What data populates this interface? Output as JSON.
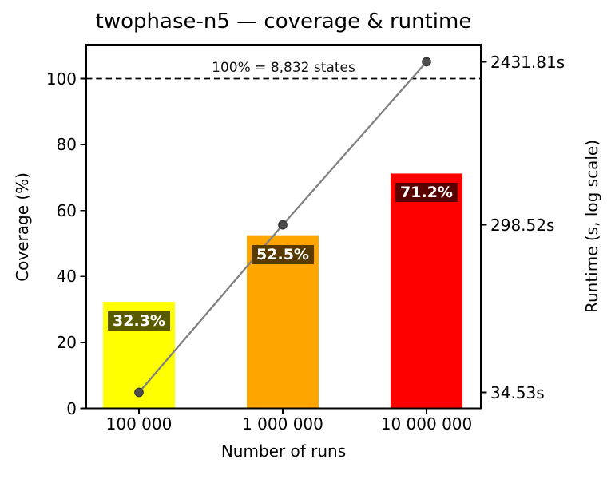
{
  "chart_data": {
    "type": "bar",
    "title": "twophase-n5 — coverage & runtime",
    "xlabel": "Number of runs",
    "ylabel_left": "Coverage (%)",
    "ylabel_right": "Runtime (s, log scale)",
    "categories": [
      "100 000",
      "1 000 000",
      "10 000 000"
    ],
    "series": [
      {
        "name": "coverage-bars",
        "type": "bar",
        "axis": "left",
        "values": [
          32.3,
          52.5,
          71.2
        ],
        "labels": [
          "32.3%",
          "52.5%",
          "71.2%"
        ],
        "bar_colors": [
          "#ffff00",
          "#ffa500",
          "#ff0000"
        ],
        "label_box_colors": [
          "#595900",
          "#593a00",
          "#590000"
        ],
        "label_text_color": "#ffffff"
      },
      {
        "name": "runtime-line",
        "type": "line",
        "axis": "right",
        "values": [
          34.53,
          298.52,
          2431.81
        ],
        "tick_labels": [
          "34.53s",
          "298.52s",
          "2431.81s"
        ],
        "line_color": "#808080",
        "marker_color": "#4d4d4d",
        "marker_edge_color": "#333333"
      }
    ],
    "left_axis": {
      "ticks": [
        0,
        20,
        40,
        60,
        80,
        100
      ],
      "range": [
        0,
        110
      ],
      "grid": false
    },
    "right_axis": {
      "scale": "log"
    },
    "reference_line": {
      "value": 100,
      "style": "dashed",
      "color": "#000000",
      "label": "100% = 8,832 states"
    },
    "legend": "none",
    "frame_color": "#000000",
    "background_color": "#ffffff"
  }
}
